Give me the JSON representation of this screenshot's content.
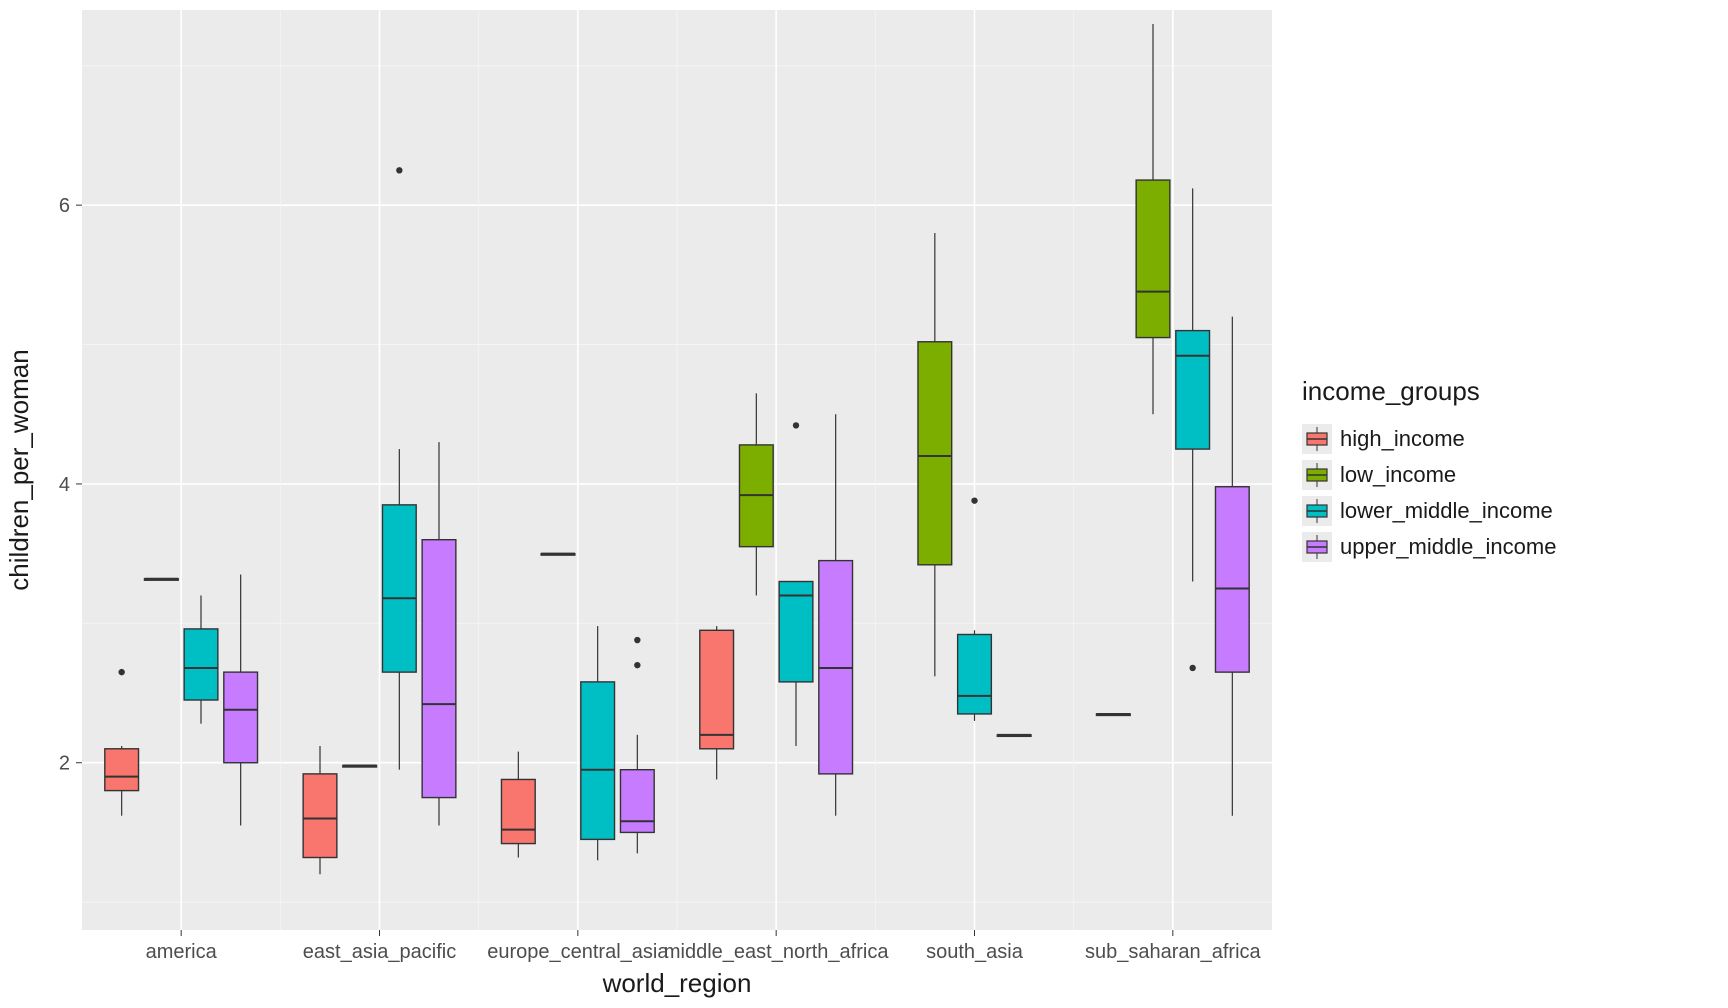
{
  "chart": {
    "type": "grouped_boxplot",
    "background_color": "#ffffff",
    "panel_color": "#ebebeb",
    "grid_major_color": "#ffffff",
    "grid_minor_color": "#f5f5f5",
    "axis_text_color": "#4d4d4d",
    "axis_title_color": "#1a1a1a",
    "x_title": "world_region",
    "y_title": "children_per_woman",
    "x_categories": [
      "america",
      "east_asia_pacific",
      "europe_central_asia",
      "middle_east_north_africa",
      "south_asia",
      "sub_saharan_africa"
    ],
    "y_ticks": [
      2,
      4,
      6
    ],
    "y_minor": [
      1,
      3,
      5,
      7
    ],
    "ylim": [
      0.8,
      7.4
    ],
    "box_width": 0.17,
    "group_gap": 0.03,
    "label_fontsize": 20,
    "title_fontsize": 26,
    "legend": {
      "title": "income_groups",
      "items": [
        {
          "key": "high_income",
          "label": "high_income",
          "color": "#f8766d"
        },
        {
          "key": "low_income",
          "label": "low_income",
          "color": "#7cae00"
        },
        {
          "key": "lower_middle_income",
          "label": "lower_middle_income",
          "color": "#00bfc4"
        },
        {
          "key": "upper_middle_income",
          "label": "upper_middle_income",
          "color": "#c77cff"
        }
      ]
    },
    "colors": {
      "high_income": "#f8766d",
      "low_income": "#7cae00",
      "lower_middle_income": "#00bfc4",
      "upper_middle_income": "#c77cff"
    },
    "boxes": {
      "america": {
        "high_income": {
          "ymin": 1.62,
          "q1": 1.8,
          "median": 1.9,
          "q3": 2.1,
          "ymax": 2.12,
          "outliers": [
            2.65
          ]
        },
        "low_income": {
          "ymin": 3.32,
          "q1": 3.32,
          "median": 3.32,
          "q3": 3.32,
          "ymax": 3.32,
          "outliers": []
        },
        "lower_middle_income": {
          "ymin": 2.28,
          "q1": 2.45,
          "median": 2.68,
          "q3": 2.96,
          "ymax": 3.2,
          "outliers": []
        },
        "upper_middle_income": {
          "ymin": 1.55,
          "q1": 2.0,
          "median": 2.38,
          "q3": 2.65,
          "ymax": 3.35,
          "outliers": []
        }
      },
      "east_asia_pacific": {
        "high_income": {
          "ymin": 1.2,
          "q1": 1.32,
          "median": 1.6,
          "q3": 1.92,
          "ymax": 2.12,
          "outliers": []
        },
        "low_income": {
          "ymin": 1.98,
          "q1": 1.98,
          "median": 1.98,
          "q3": 1.98,
          "ymax": 1.98,
          "outliers": []
        },
        "lower_middle_income": {
          "ymin": 1.95,
          "q1": 2.65,
          "median": 3.18,
          "q3": 3.85,
          "ymax": 4.25,
          "outliers": [
            6.25
          ]
        },
        "upper_middle_income": {
          "ymin": 1.55,
          "q1": 1.75,
          "median": 2.42,
          "q3": 3.6,
          "ymax": 4.3,
          "outliers": []
        }
      },
      "europe_central_asia": {
        "high_income": {
          "ymin": 1.32,
          "q1": 1.42,
          "median": 1.52,
          "q3": 1.88,
          "ymax": 2.08,
          "outliers": []
        },
        "low_income": {
          "ymin": 3.5,
          "q1": 3.5,
          "median": 3.5,
          "q3": 3.5,
          "ymax": 3.5,
          "outliers": []
        },
        "lower_middle_income": {
          "ymin": 1.3,
          "q1": 1.45,
          "median": 1.95,
          "q3": 2.58,
          "ymax": 2.98,
          "outliers": []
        },
        "upper_middle_income": {
          "ymin": 1.35,
          "q1": 1.5,
          "median": 1.58,
          "q3": 1.95,
          "ymax": 2.2,
          "outliers": [
            2.7,
            2.88
          ]
        }
      },
      "middle_east_north_africa": {
        "high_income": {
          "ymin": 1.88,
          "q1": 2.1,
          "median": 2.2,
          "q3": 2.95,
          "ymax": 2.98,
          "outliers": []
        },
        "low_income": {
          "ymin": 3.2,
          "q1": 3.55,
          "median": 3.92,
          "q3": 4.28,
          "ymax": 4.65,
          "outliers": []
        },
        "lower_middle_income": {
          "ymin": 2.12,
          "q1": 2.58,
          "median": 3.2,
          "q3": 3.3,
          "ymax": 3.3,
          "outliers": [
            4.42
          ]
        },
        "upper_middle_income": {
          "ymin": 1.62,
          "q1": 1.92,
          "median": 2.68,
          "q3": 3.45,
          "ymax": 4.5,
          "outliers": []
        }
      },
      "south_asia": {
        "low_income": {
          "ymin": 2.62,
          "q1": 3.42,
          "median": 4.2,
          "q3": 5.02,
          "ymax": 5.8,
          "outliers": []
        },
        "lower_middle_income": {
          "ymin": 2.3,
          "q1": 2.35,
          "median": 2.48,
          "q3": 2.92,
          "ymax": 2.95,
          "outliers": [
            3.88
          ]
        },
        "upper_middle_income": {
          "ymin": 2.2,
          "q1": 2.2,
          "median": 2.2,
          "q3": 2.2,
          "ymax": 2.2,
          "outliers": []
        }
      },
      "sub_saharan_africa": {
        "high_income": {
          "ymin": 2.35,
          "q1": 2.35,
          "median": 2.35,
          "q3": 2.35,
          "ymax": 2.35,
          "outliers": []
        },
        "low_income": {
          "ymin": 4.5,
          "q1": 5.05,
          "median": 5.38,
          "q3": 6.18,
          "ymax": 7.3,
          "outliers": []
        },
        "lower_middle_income": {
          "ymin": 3.3,
          "q1": 4.25,
          "median": 4.92,
          "q3": 5.1,
          "ymax": 6.12,
          "outliers": [
            2.68
          ]
        },
        "upper_middle_income": {
          "ymin": 1.62,
          "q1": 2.65,
          "median": 3.25,
          "q3": 3.98,
          "ymax": 5.2,
          "outliers": []
        }
      }
    }
  }
}
